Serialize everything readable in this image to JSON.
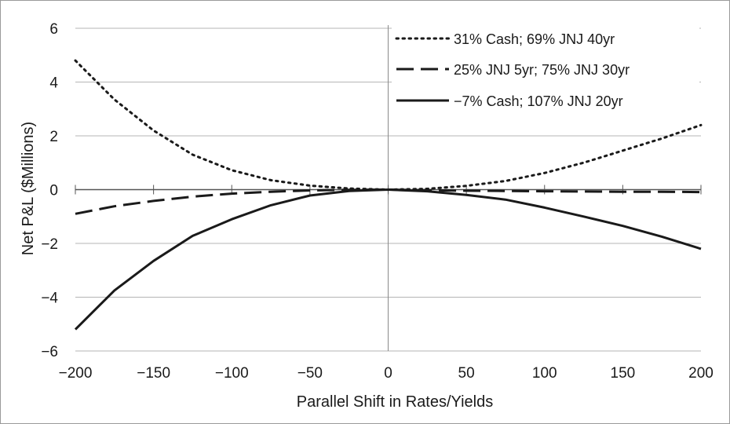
{
  "chart_data": {
    "type": "line",
    "title": "",
    "xlabel": "Parallel Shift in Rates/Yields",
    "ylabel": "Net P&L ($Millions)",
    "xlim": [
      -200,
      200
    ],
    "ylim": [
      -6,
      6
    ],
    "xticks": [
      -200,
      -150,
      -100,
      -50,
      0,
      50,
      100,
      150,
      200
    ],
    "yticks": [
      -6,
      -4,
      -2,
      0,
      2,
      4,
      6
    ],
    "xtick_labels": [
      "−200",
      "−150",
      "−100",
      "−50",
      "0",
      "50",
      "100",
      "150",
      "200"
    ],
    "ytick_labels": [
      "−6",
      "−4",
      "−2",
      "0",
      "2",
      "4",
      "6"
    ],
    "grid": "horizontal",
    "legend_position": "top-right",
    "colors": {
      "line": "#1a1a1a",
      "grid": "#b5b5b5",
      "zero_line": "#8a8a8a"
    },
    "x": [
      -200,
      -175,
      -150,
      -125,
      -100,
      -75,
      -50,
      -25,
      0,
      25,
      50,
      75,
      100,
      125,
      150,
      175,
      200
    ],
    "series": [
      {
        "name": "31% Cash; 69% JNJ 40yr",
        "style": "dotted",
        "values": [
          4.8,
          3.35,
          2.2,
          1.3,
          0.72,
          0.35,
          0.15,
          0.04,
          0.0,
          0.03,
          0.14,
          0.32,
          0.62,
          1.0,
          1.45,
          1.9,
          2.4
        ]
      },
      {
        "name": "25% JNJ 5yr; 75% JNJ 30yr",
        "style": "dashed",
        "values": [
          -0.9,
          -0.62,
          -0.42,
          -0.26,
          -0.15,
          -0.08,
          -0.03,
          -0.01,
          0.0,
          -0.02,
          -0.04,
          -0.05,
          -0.06,
          -0.07,
          -0.08,
          -0.08,
          -0.09
        ]
      },
      {
        "name": "−7% Cash; 107% JNJ 20yr",
        "style": "solid",
        "values": [
          -5.2,
          -3.75,
          -2.65,
          -1.72,
          -1.1,
          -0.58,
          -0.22,
          -0.05,
          0.0,
          -0.06,
          -0.2,
          -0.37,
          -0.67,
          -1.0,
          -1.35,
          -1.75,
          -2.2
        ]
      }
    ]
  }
}
